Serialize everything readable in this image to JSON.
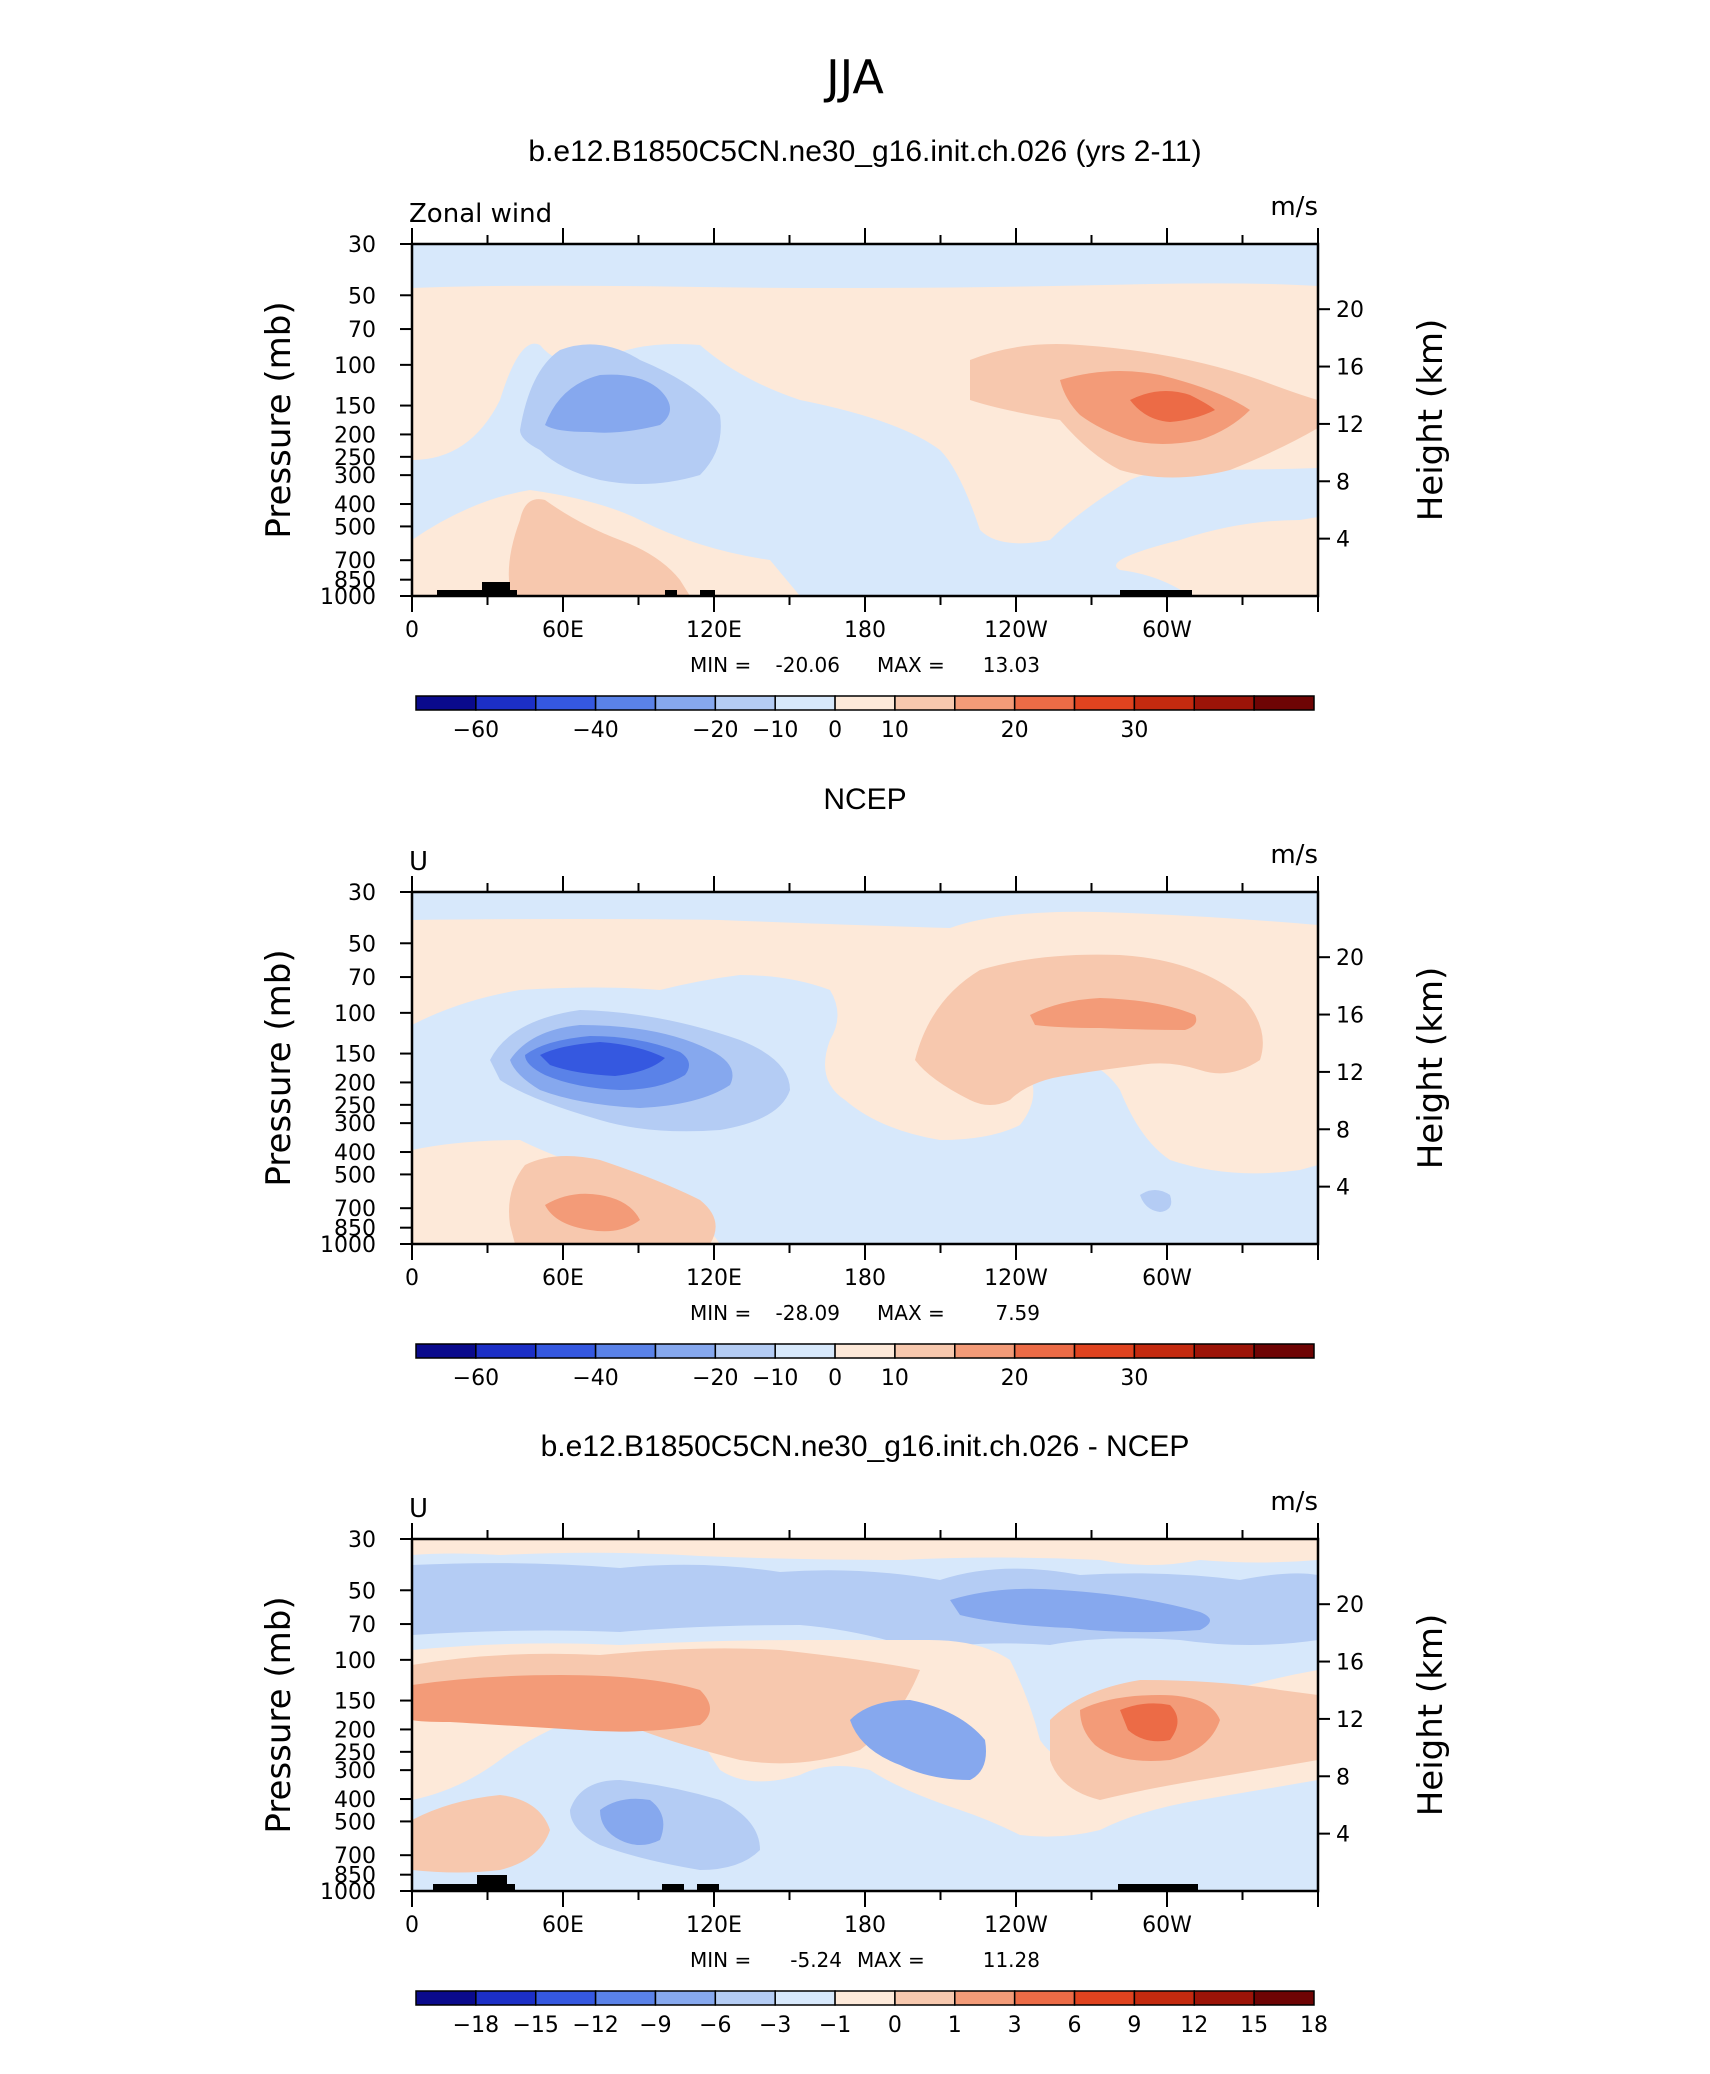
{
  "page": {
    "title": "JJA"
  },
  "chart_data": [
    {
      "type": "heatmap",
      "title": "b.e12.B1850C5CN.ne30_g16.init.ch.026 (yrs 2-11)",
      "left_label": "Zonal wind",
      "units": "m/s",
      "ylabel": "Pressure (mb)",
      "ylabel_right": "Height (km)",
      "x_ticks": [
        "0",
        "60E",
        "120E",
        "180",
        "120W",
        "60W"
      ],
      "y_ticks": [
        "30",
        "50",
        "70",
        "100",
        "150",
        "200",
        "250",
        "300",
        "400",
        "500",
        "700",
        "850",
        "1000"
      ],
      "y_ticks_right": [
        "20",
        "16",
        "12",
        "8",
        "4"
      ],
      "stats": {
        "min_label": "MIN =",
        "min": "-20.06",
        "max_label": "MAX =",
        "max": "13.03"
      },
      "levels": [
        "-60",
        "-40",
        "-20",
        "-10",
        "0",
        "10",
        "20",
        "30"
      ],
      "colorbar": [
        "#0a0a8c",
        "#1c2fc6",
        "#3558e0",
        "#5a82e8",
        "#86a8ee",
        "#b4ccf4",
        "#d7e8fb",
        "#fde9d9",
        "#f7c8ae",
        "#f39b78",
        "#ec6b46",
        "#e0431f",
        "#c42a0f",
        "#9c1408",
        "#6e0404"
      ]
    },
    {
      "type": "heatmap",
      "title": "NCEP",
      "left_label": "U",
      "units": "m/s",
      "ylabel": "Pressure (mb)",
      "ylabel_right": "Height (km)",
      "x_ticks": [
        "0",
        "60E",
        "120E",
        "180",
        "120W",
        "60W"
      ],
      "y_ticks": [
        "30",
        "50",
        "70",
        "100",
        "150",
        "200",
        "250",
        "300",
        "400",
        "500",
        "700",
        "850",
        "1000"
      ],
      "y_ticks_right": [
        "20",
        "16",
        "12",
        "8",
        "4"
      ],
      "stats": {
        "min_label": "MIN =",
        "min": "-28.09",
        "max_label": "MAX =",
        "max": "7.59"
      },
      "levels": [
        "-60",
        "-40",
        "-20",
        "-10",
        "0",
        "10",
        "20",
        "30"
      ],
      "colorbar": [
        "#0a0a8c",
        "#1c2fc6",
        "#3558e0",
        "#5a82e8",
        "#86a8ee",
        "#b4ccf4",
        "#d7e8fb",
        "#fde9d9",
        "#f7c8ae",
        "#f39b78",
        "#ec6b46",
        "#e0431f",
        "#c42a0f",
        "#9c1408",
        "#6e0404"
      ]
    },
    {
      "type": "heatmap",
      "title": "b.e12.B1850C5CN.ne30_g16.init.ch.026 - NCEP",
      "left_label": "U",
      "units": "m/s",
      "ylabel": "Pressure (mb)",
      "ylabel_right": "Height (km)",
      "x_ticks": [
        "0",
        "60E",
        "120E",
        "180",
        "120W",
        "60W"
      ],
      "y_ticks": [
        "30",
        "50",
        "70",
        "100",
        "150",
        "200",
        "250",
        "300",
        "400",
        "500",
        "700",
        "850",
        "1000"
      ],
      "y_ticks_right": [
        "20",
        "16",
        "12",
        "8",
        "4"
      ],
      "stats": {
        "min_label": "MIN =",
        "min": "-5.24",
        "max_label": "MAX =",
        "max": "11.28"
      },
      "levels": [
        "-18",
        "-15",
        "-12",
        "-9",
        "-6",
        "-3",
        "-1",
        "0",
        "1",
        "3",
        "6",
        "9",
        "12",
        "15",
        "18"
      ],
      "colorbar": [
        "#0a0a8c",
        "#1c2fc6",
        "#3558e0",
        "#5a82e8",
        "#86a8ee",
        "#b4ccf4",
        "#d7e8fb",
        "#fde9d9",
        "#f7c8ae",
        "#f39b78",
        "#ec6b46",
        "#e0431f",
        "#c42a0f",
        "#9c1408",
        "#6e0404"
      ]
    }
  ]
}
